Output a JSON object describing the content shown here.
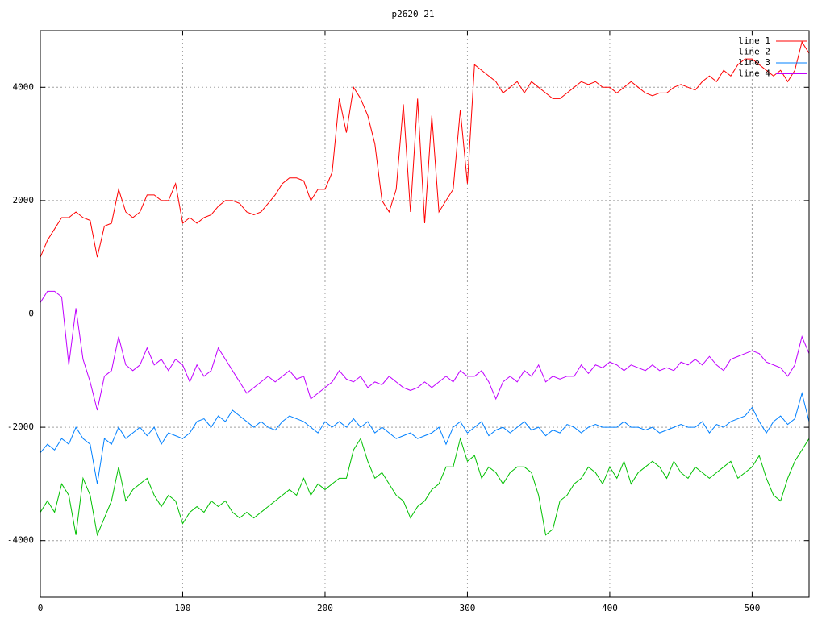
{
  "chart_data": {
    "type": "line",
    "title": "p2620_21",
    "x": [
      0,
      5,
      10,
      15,
      20,
      25,
      30,
      35,
      40,
      45,
      50,
      55,
      60,
      65,
      70,
      75,
      80,
      85,
      90,
      95,
      100,
      105,
      110,
      115,
      120,
      125,
      130,
      135,
      140,
      145,
      150,
      155,
      160,
      165,
      170,
      175,
      180,
      185,
      190,
      195,
      200,
      205,
      210,
      215,
      220,
      225,
      230,
      235,
      240,
      245,
      250,
      255,
      260,
      265,
      270,
      275,
      280,
      285,
      290,
      295,
      300,
      305,
      310,
      315,
      320,
      325,
      330,
      335,
      340,
      345,
      350,
      355,
      360,
      365,
      370,
      375,
      380,
      385,
      390,
      395,
      400,
      405,
      410,
      415,
      420,
      425,
      430,
      435,
      440,
      445,
      450,
      455,
      460,
      465,
      470,
      475,
      480,
      485,
      490,
      495,
      500,
      505,
      510,
      515,
      520,
      525,
      530,
      535,
      540
    ],
    "series": [
      {
        "name": "line 1",
        "color": "#ff0000",
        "values": [
          1000,
          1300,
          1500,
          1700,
          1700,
          1800,
          1700,
          1650,
          1000,
          1550,
          1600,
          2200,
          1800,
          1700,
          1800,
          2100,
          2100,
          2000,
          2000,
          2300,
          1600,
          1700,
          1600,
          1700,
          1750,
          1900,
          2000,
          2000,
          1950,
          1800,
          1750,
          1800,
          1950,
          2100,
          2300,
          2400,
          2400,
          2350,
          2000,
          2200,
          2200,
          2500,
          3800,
          3200,
          4000,
          3800,
          3500,
          3000,
          2000,
          1800,
          2200,
          3700,
          1800,
          3800,
          1600,
          3500,
          1800,
          2000,
          2200,
          3600,
          2300,
          4400,
          4300,
          4200,
          4100,
          3900,
          4000,
          4100,
          3900,
          4100,
          4000,
          3900,
          3800,
          3800,
          3900,
          4000,
          4100,
          4050,
          4100,
          4000,
          4000,
          3900,
          4000,
          4100,
          4000,
          3900,
          3850,
          3900,
          3900,
          4000,
          4050,
          4000,
          3950,
          4100,
          4200,
          4100,
          4300,
          4200,
          4400,
          4500,
          4500,
          4400,
          4300,
          4200,
          4300,
          4100,
          4300,
          4800,
          4600
        ]
      },
      {
        "name": "line 2",
        "color": "#00c000",
        "values": [
          -3500,
          -3300,
          -3500,
          -3000,
          -3200,
          -3900,
          -2900,
          -3200,
          -3900,
          -3600,
          -3300,
          -2700,
          -3300,
          -3100,
          -3000,
          -2900,
          -3200,
          -3400,
          -3200,
          -3300,
          -3700,
          -3500,
          -3400,
          -3500,
          -3300,
          -3400,
          -3300,
          -3500,
          -3600,
          -3500,
          -3600,
          -3500,
          -3400,
          -3300,
          -3200,
          -3100,
          -3200,
          -2900,
          -3200,
          -3000,
          -3100,
          -3000,
          -2900,
          -2900,
          -2400,
          -2200,
          -2600,
          -2900,
          -2800,
          -3000,
          -3200,
          -3300,
          -3600,
          -3400,
          -3300,
          -3100,
          -3000,
          -2700,
          -2700,
          -2200,
          -2600,
          -2500,
          -2900,
          -2700,
          -2800,
          -3000,
          -2800,
          -2700,
          -2700,
          -2800,
          -3200,
          -3900,
          -3800,
          -3300,
          -3200,
          -3000,
          -2900,
          -2700,
          -2800,
          -3000,
          -2700,
          -2900,
          -2600,
          -3000,
          -2800,
          -2700,
          -2600,
          -2700,
          -2900,
          -2600,
          -2800,
          -2900,
          -2700,
          -2800,
          -2900,
          -2800,
          -2700,
          -2600,
          -2900,
          -2800,
          -2700,
          -2500,
          -2900,
          -3200,
          -3300,
          -2900,
          -2600,
          -2400,
          -2200
        ]
      },
      {
        "name": "line 3",
        "color": "#0080ff",
        "values": [
          -2450,
          -2300,
          -2400,
          -2200,
          -2300,
          -2000,
          -2200,
          -2300,
          -3000,
          -2200,
          -2300,
          -2000,
          -2200,
          -2100,
          -2000,
          -2150,
          -2000,
          -2300,
          -2100,
          -2150,
          -2200,
          -2100,
          -1900,
          -1850,
          -2000,
          -1800,
          -1900,
          -1700,
          -1800,
          -1900,
          -2000,
          -1900,
          -2000,
          -2050,
          -1900,
          -1800,
          -1850,
          -1900,
          -2000,
          -2100,
          -1900,
          -2000,
          -1900,
          -2000,
          -1850,
          -2000,
          -1900,
          -2100,
          -2000,
          -2100,
          -2200,
          -2150,
          -2100,
          -2200,
          -2150,
          -2100,
          -2000,
          -2300,
          -2000,
          -1900,
          -2100,
          -2000,
          -1900,
          -2150,
          -2050,
          -2000,
          -2100,
          -2000,
          -1900,
          -2050,
          -2000,
          -2150,
          -2050,
          -2100,
          -1950,
          -2000,
          -2100,
          -2000,
          -1950,
          -2000,
          -2000,
          -2000,
          -1900,
          -2000,
          -2000,
          -2050,
          -2000,
          -2100,
          -2050,
          -2000,
          -1950,
          -2000,
          -2000,
          -1900,
          -2100,
          -1950,
          -2000,
          -1900,
          -1850,
          -1800,
          -1650,
          -1900,
          -2100,
          -1900,
          -1800,
          -1950,
          -1850,
          -1400,
          -1900
        ]
      },
      {
        "name": "line 4",
        "color": "#c000ff",
        "values": [
          200,
          400,
          400,
          300,
          -900,
          100,
          -800,
          -1200,
          -1700,
          -1100,
          -1000,
          -400,
          -900,
          -1000,
          -900,
          -600,
          -900,
          -800,
          -1000,
          -800,
          -900,
          -1200,
          -900,
          -1100,
          -1000,
          -600,
          -800,
          -1000,
          -1200,
          -1400,
          -1300,
          -1200,
          -1100,
          -1200,
          -1100,
          -1000,
          -1150,
          -1100,
          -1500,
          -1400,
          -1300,
          -1200,
          -1000,
          -1150,
          -1200,
          -1100,
          -1300,
          -1200,
          -1250,
          -1100,
          -1200,
          -1300,
          -1350,
          -1300,
          -1200,
          -1300,
          -1200,
          -1100,
          -1200,
          -1000,
          -1100,
          -1100,
          -1000,
          -1200,
          -1500,
          -1200,
          -1100,
          -1200,
          -1000,
          -1100,
          -900,
          -1200,
          -1100,
          -1150,
          -1100,
          -1100,
          -900,
          -1050,
          -900,
          -950,
          -850,
          -900,
          -1000,
          -900,
          -950,
          -1000,
          -900,
          -1000,
          -950,
          -1000,
          -850,
          -900,
          -800,
          -900,
          -750,
          -900,
          -1000,
          -800,
          -750,
          -700,
          -650,
          -700,
          -850,
          -900,
          -950,
          -1100,
          -900,
          -400,
          -700
        ]
      }
    ],
    "xlim": [
      0,
      540
    ],
    "xticks": [
      0,
      100,
      200,
      300,
      400,
      500
    ],
    "ylim": [
      -5000,
      5000
    ],
    "yticks": [
      -4000,
      -2000,
      0,
      2000,
      4000
    ],
    "grid": true,
    "legend_position": "top-right"
  }
}
